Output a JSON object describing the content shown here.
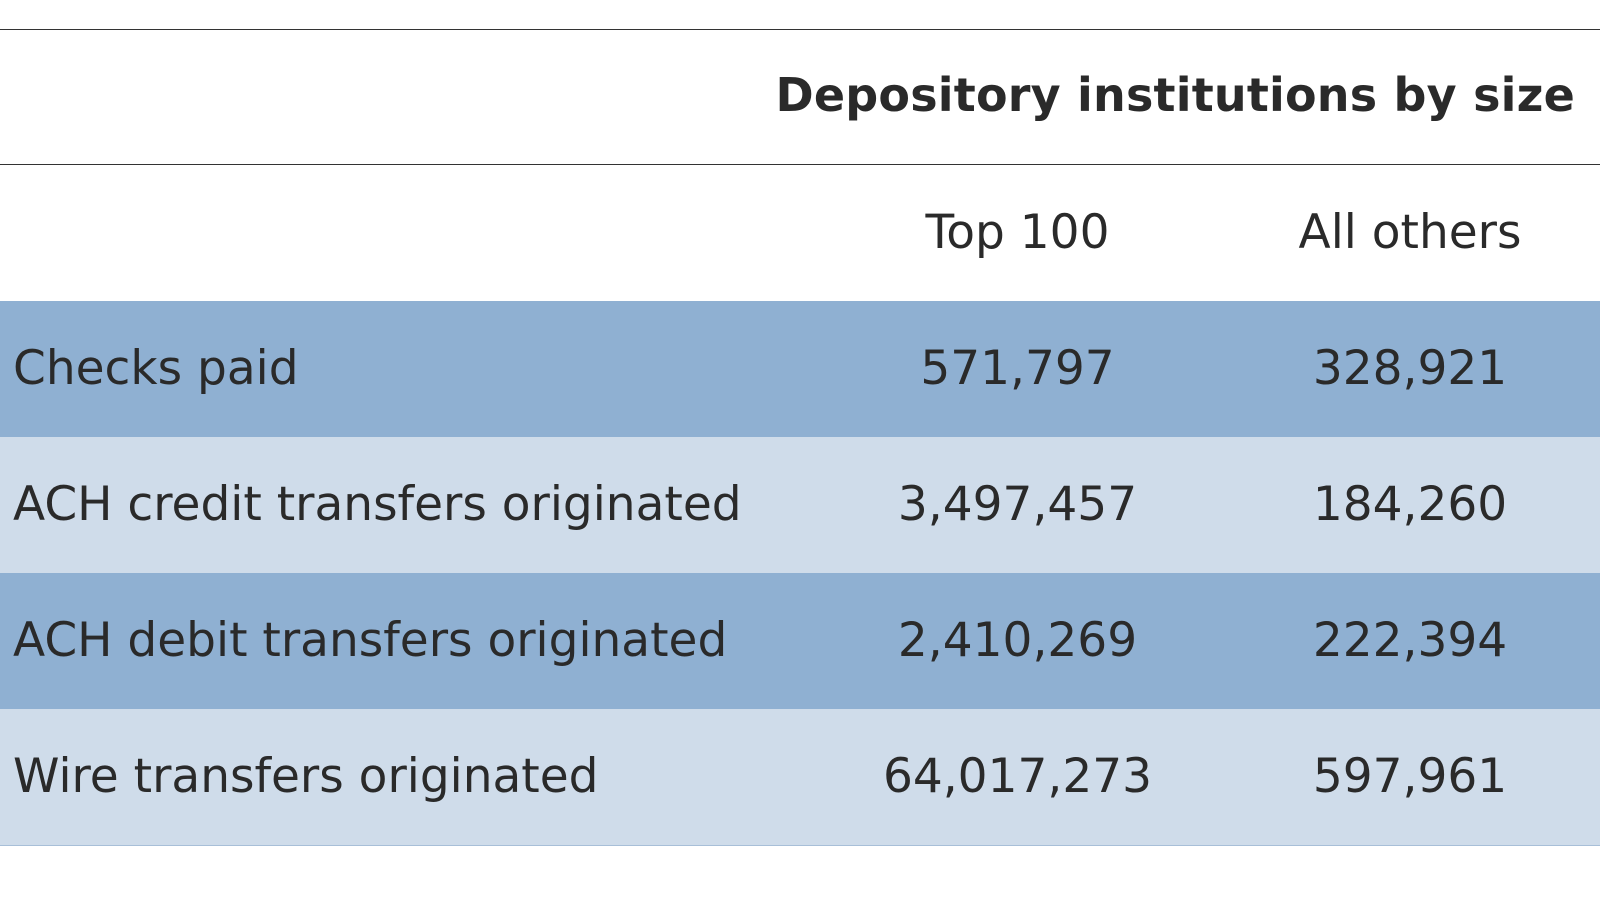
{
  "chart_data": {
    "type": "table",
    "title": "",
    "column_group_header": "Depository institutions by size",
    "columns": [
      "Top 100",
      "All others"
    ],
    "rows": [
      {
        "label": "Checks paid",
        "values": [
          "571,797",
          "328,921"
        ]
      },
      {
        "label": "ACH credit transfers originated",
        "values": [
          "3,497,457",
          "184,260"
        ]
      },
      {
        "label": "ACH debit transfers originated",
        "values": [
          "2,410,269",
          "222,394"
        ]
      },
      {
        "label": "Wire transfers originated",
        "values": [
          "64,017,273",
          "597,961"
        ]
      }
    ],
    "colors": {
      "row_dark": "#8fb0d2",
      "row_light": "#cfdcea",
      "text": "#2a2a2a",
      "rule": "#333333"
    }
  }
}
